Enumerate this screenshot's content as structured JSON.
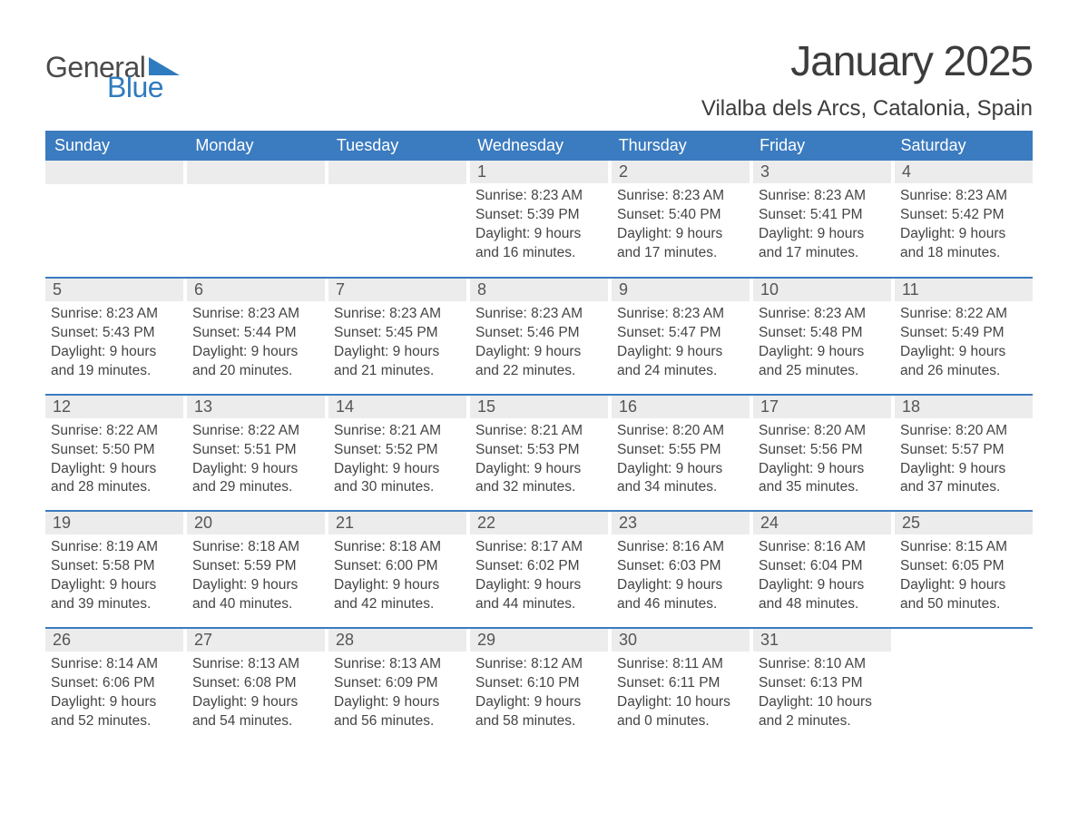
{
  "brand": {
    "word1": "General",
    "word2": "Blue",
    "word1_color": "#4a4a4a",
    "word2_color": "#2f7bbf",
    "shape_color": "#2f7bbf"
  },
  "title": "January 2025",
  "location": "Vilalba dels Arcs, Catalonia, Spain",
  "colors": {
    "header_bg": "#3b7bbf",
    "header_text": "#ffffff",
    "daynum_bg": "#ececec",
    "daynum_text": "#555555",
    "body_text": "#444444",
    "divider": "#3b7bbf",
    "page_bg": "#ffffff"
  },
  "typography": {
    "title_fontsize": 46,
    "location_fontsize": 24,
    "weekday_fontsize": 18,
    "daynum_fontsize": 18,
    "body_fontsize": 15.5,
    "font_family": "Arial"
  },
  "weekdays": [
    "Sunday",
    "Monday",
    "Tuesday",
    "Wednesday",
    "Thursday",
    "Friday",
    "Saturday"
  ],
  "weeks": [
    [
      {
        "blank": true
      },
      {
        "blank": true
      },
      {
        "blank": true
      },
      {
        "num": "1",
        "sunrise": "Sunrise: 8:23 AM",
        "sunset": "Sunset: 5:39 PM",
        "dl1": "Daylight: 9 hours",
        "dl2": "and 16 minutes."
      },
      {
        "num": "2",
        "sunrise": "Sunrise: 8:23 AM",
        "sunset": "Sunset: 5:40 PM",
        "dl1": "Daylight: 9 hours",
        "dl2": "and 17 minutes."
      },
      {
        "num": "3",
        "sunrise": "Sunrise: 8:23 AM",
        "sunset": "Sunset: 5:41 PM",
        "dl1": "Daylight: 9 hours",
        "dl2": "and 17 minutes."
      },
      {
        "num": "4",
        "sunrise": "Sunrise: 8:23 AM",
        "sunset": "Sunset: 5:42 PM",
        "dl1": "Daylight: 9 hours",
        "dl2": "and 18 minutes."
      }
    ],
    [
      {
        "num": "5",
        "sunrise": "Sunrise: 8:23 AM",
        "sunset": "Sunset: 5:43 PM",
        "dl1": "Daylight: 9 hours",
        "dl2": "and 19 minutes."
      },
      {
        "num": "6",
        "sunrise": "Sunrise: 8:23 AM",
        "sunset": "Sunset: 5:44 PM",
        "dl1": "Daylight: 9 hours",
        "dl2": "and 20 minutes."
      },
      {
        "num": "7",
        "sunrise": "Sunrise: 8:23 AM",
        "sunset": "Sunset: 5:45 PM",
        "dl1": "Daylight: 9 hours",
        "dl2": "and 21 minutes."
      },
      {
        "num": "8",
        "sunrise": "Sunrise: 8:23 AM",
        "sunset": "Sunset: 5:46 PM",
        "dl1": "Daylight: 9 hours",
        "dl2": "and 22 minutes."
      },
      {
        "num": "9",
        "sunrise": "Sunrise: 8:23 AM",
        "sunset": "Sunset: 5:47 PM",
        "dl1": "Daylight: 9 hours",
        "dl2": "and 24 minutes."
      },
      {
        "num": "10",
        "sunrise": "Sunrise: 8:23 AM",
        "sunset": "Sunset: 5:48 PM",
        "dl1": "Daylight: 9 hours",
        "dl2": "and 25 minutes."
      },
      {
        "num": "11",
        "sunrise": "Sunrise: 8:22 AM",
        "sunset": "Sunset: 5:49 PM",
        "dl1": "Daylight: 9 hours",
        "dl2": "and 26 minutes."
      }
    ],
    [
      {
        "num": "12",
        "sunrise": "Sunrise: 8:22 AM",
        "sunset": "Sunset: 5:50 PM",
        "dl1": "Daylight: 9 hours",
        "dl2": "and 28 minutes."
      },
      {
        "num": "13",
        "sunrise": "Sunrise: 8:22 AM",
        "sunset": "Sunset: 5:51 PM",
        "dl1": "Daylight: 9 hours",
        "dl2": "and 29 minutes."
      },
      {
        "num": "14",
        "sunrise": "Sunrise: 8:21 AM",
        "sunset": "Sunset: 5:52 PM",
        "dl1": "Daylight: 9 hours",
        "dl2": "and 30 minutes."
      },
      {
        "num": "15",
        "sunrise": "Sunrise: 8:21 AM",
        "sunset": "Sunset: 5:53 PM",
        "dl1": "Daylight: 9 hours",
        "dl2": "and 32 minutes."
      },
      {
        "num": "16",
        "sunrise": "Sunrise: 8:20 AM",
        "sunset": "Sunset: 5:55 PM",
        "dl1": "Daylight: 9 hours",
        "dl2": "and 34 minutes."
      },
      {
        "num": "17",
        "sunrise": "Sunrise: 8:20 AM",
        "sunset": "Sunset: 5:56 PM",
        "dl1": "Daylight: 9 hours",
        "dl2": "and 35 minutes."
      },
      {
        "num": "18",
        "sunrise": "Sunrise: 8:20 AM",
        "sunset": "Sunset: 5:57 PM",
        "dl1": "Daylight: 9 hours",
        "dl2": "and 37 minutes."
      }
    ],
    [
      {
        "num": "19",
        "sunrise": "Sunrise: 8:19 AM",
        "sunset": "Sunset: 5:58 PM",
        "dl1": "Daylight: 9 hours",
        "dl2": "and 39 minutes."
      },
      {
        "num": "20",
        "sunrise": "Sunrise: 8:18 AM",
        "sunset": "Sunset: 5:59 PM",
        "dl1": "Daylight: 9 hours",
        "dl2": "and 40 minutes."
      },
      {
        "num": "21",
        "sunrise": "Sunrise: 8:18 AM",
        "sunset": "Sunset: 6:00 PM",
        "dl1": "Daylight: 9 hours",
        "dl2": "and 42 minutes."
      },
      {
        "num": "22",
        "sunrise": "Sunrise: 8:17 AM",
        "sunset": "Sunset: 6:02 PM",
        "dl1": "Daylight: 9 hours",
        "dl2": "and 44 minutes."
      },
      {
        "num": "23",
        "sunrise": "Sunrise: 8:16 AM",
        "sunset": "Sunset: 6:03 PM",
        "dl1": "Daylight: 9 hours",
        "dl2": "and 46 minutes."
      },
      {
        "num": "24",
        "sunrise": "Sunrise: 8:16 AM",
        "sunset": "Sunset: 6:04 PM",
        "dl1": "Daylight: 9 hours",
        "dl2": "and 48 minutes."
      },
      {
        "num": "25",
        "sunrise": "Sunrise: 8:15 AM",
        "sunset": "Sunset: 6:05 PM",
        "dl1": "Daylight: 9 hours",
        "dl2": "and 50 minutes."
      }
    ],
    [
      {
        "num": "26",
        "sunrise": "Sunrise: 8:14 AM",
        "sunset": "Sunset: 6:06 PM",
        "dl1": "Daylight: 9 hours",
        "dl2": "and 52 minutes."
      },
      {
        "num": "27",
        "sunrise": "Sunrise: 8:13 AM",
        "sunset": "Sunset: 6:08 PM",
        "dl1": "Daylight: 9 hours",
        "dl2": "and 54 minutes."
      },
      {
        "num": "28",
        "sunrise": "Sunrise: 8:13 AM",
        "sunset": "Sunset: 6:09 PM",
        "dl1": "Daylight: 9 hours",
        "dl2": "and 56 minutes."
      },
      {
        "num": "29",
        "sunrise": "Sunrise: 8:12 AM",
        "sunset": "Sunset: 6:10 PM",
        "dl1": "Daylight: 9 hours",
        "dl2": "and 58 minutes."
      },
      {
        "num": "30",
        "sunrise": "Sunrise: 8:11 AM",
        "sunset": "Sunset: 6:11 PM",
        "dl1": "Daylight: 10 hours",
        "dl2": "and 0 minutes."
      },
      {
        "num": "31",
        "sunrise": "Sunrise: 8:10 AM",
        "sunset": "Sunset: 6:13 PM",
        "dl1": "Daylight: 10 hours",
        "dl2": "and 2 minutes."
      },
      {
        "blank": true,
        "noHead": true
      }
    ]
  ]
}
